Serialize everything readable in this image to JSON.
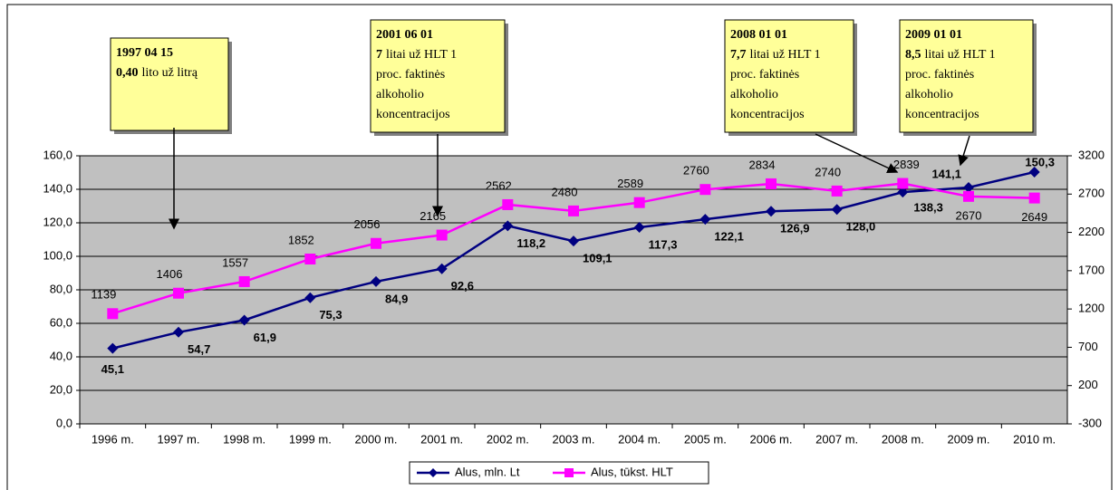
{
  "chart_data": {
    "type": "line",
    "categories": [
      "1996 m.",
      "1997 m.",
      "1998 m.",
      "1999 m.",
      "2000 m.",
      "2001 m.",
      "2002 m.",
      "2003 m.",
      "2004 m.",
      "2005 m.",
      "2006 m.",
      "2007 m.",
      "2008 m.",
      "2009 m.",
      "2010 m."
    ],
    "series": [
      {
        "name": "Alus, mln. Lt",
        "color": "#000080",
        "marker": "diamond",
        "values": [
          45.1,
          54.7,
          61.9,
          75.3,
          84.9,
          92.6,
          118.2,
          109.1,
          117.3,
          122.1,
          126.9,
          128.0,
          138.3,
          141.1,
          150.3
        ],
        "value_labels": [
          "45,1",
          "54,7",
          "61,9",
          "75,3",
          "84,9",
          "92,6",
          "118,2",
          "109,1",
          "117,3",
          "122,1",
          "126,9",
          "128,0",
          "138,3",
          "141,1",
          "150,3"
        ]
      },
      {
        "name": "Alus, tūkst. HLT",
        "color": "#ff00ff",
        "marker": "square",
        "axis": "y2",
        "values": [
          1139,
          1406,
          1557,
          1852,
          2056,
          2165,
          2562,
          2480,
          2589,
          2760,
          2834,
          2740,
          2839,
          2670,
          2649
        ]
      }
    ],
    "ylim": [
      0,
      160
    ],
    "yticks": [
      {
        "value": 0,
        "label": "0,0"
      },
      {
        "value": 20,
        "label": "20,0"
      },
      {
        "value": 40,
        "label": "40,0"
      },
      {
        "value": 60,
        "label": "60,0"
      },
      {
        "value": 80,
        "label": "80,0"
      },
      {
        "value": 100,
        "label": "100,0"
      },
      {
        "value": 120,
        "label": "120,0"
      },
      {
        "value": 140,
        "label": "140,0"
      },
      {
        "value": 160,
        "label": "160,0"
      }
    ],
    "y2lim": [
      -300,
      3200
    ],
    "y2ticks": [
      -300,
      200,
      700,
      1200,
      1700,
      2200,
      2700,
      3200
    ],
    "grid": true,
    "legend": "bottom",
    "annotations": [
      {
        "date": "1997 04 15",
        "rate": "0,40",
        "text": [
          "lito už litrą"
        ]
      },
      {
        "date": "2001 06 01",
        "rate": "7",
        "text": [
          "litai už HLT 1",
          "proc. faktinės",
          "alkoholio",
          "koncentracijos"
        ]
      },
      {
        "date": "2008 01 01",
        "rate": "7,7",
        "text": [
          "litai už HLT 1",
          "proc. faktinės",
          "alkoholio",
          "koncentracijos"
        ]
      },
      {
        "date": "2009 01 01",
        "rate": "8,5",
        "text": [
          "litai už HLT 1",
          "proc. faktinės",
          "alkoholio",
          "koncentracijos"
        ]
      }
    ]
  }
}
